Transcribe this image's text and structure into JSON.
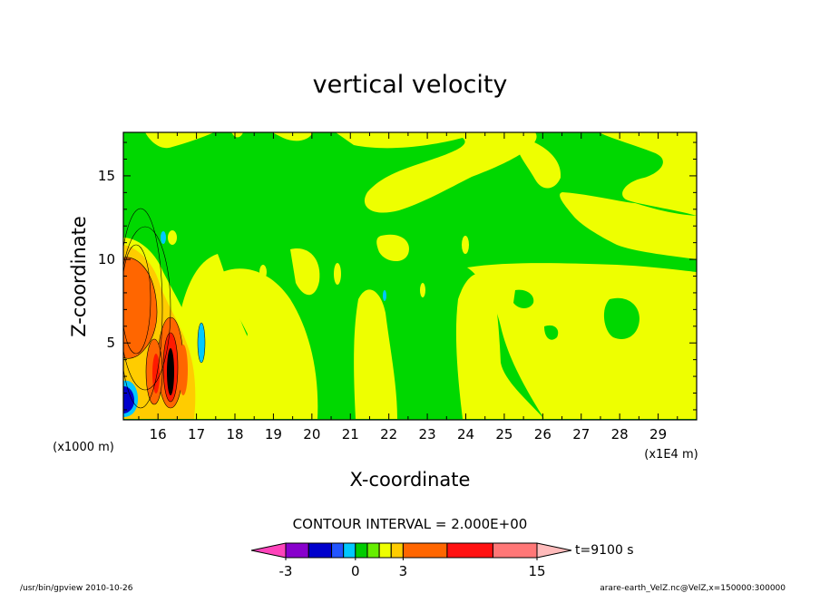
{
  "chart_data": {
    "type": "heatmap",
    "title": "vertical velocity",
    "xlabel": "X-coordinate",
    "ylabel": "Z-coordinate",
    "x_unit_label": "(x1E4 m)",
    "y_unit_label": "(x1000 m)",
    "xlim": [
      15.1,
      30.0
    ],
    "ylim": [
      0.4,
      17.6
    ],
    "x_ticks": [
      16,
      17,
      18,
      19,
      20,
      21,
      22,
      23,
      24,
      25,
      26,
      27,
      28,
      29
    ],
    "y_ticks": [
      5,
      10,
      15
    ],
    "contour_interval_label": "CONTOUR INTERVAL = 2.000E+00",
    "colorbar": {
      "levels": [
        -3,
        -2,
        -1,
        -0.5,
        0,
        0.5,
        1,
        2,
        3,
        7,
        11,
        15
      ],
      "labels": [
        "-3",
        "0",
        "3",
        "15"
      ],
      "colors": [
        "#ff44bb",
        "#8800cc",
        "#0000cc",
        "#2255ff",
        "#00c8ff",
        "#00cc00",
        "#66ee00",
        "#eeff00",
        "#ffcc00",
        "#ff6600",
        "#ff1111",
        "#ff7777",
        "#ffbbbb"
      ]
    },
    "time_label": "t=9100 s",
    "field_colors": {
      "background": "#00d800",
      "positive": "#eeff00",
      "strong": "#ff6600",
      "peak": "#ff1a00",
      "core": "#000000",
      "negative": "#00c8ff",
      "strong_negative": "#0000cc"
    }
  },
  "footer": {
    "left": "/usr/bin/gpview   2010-10-26",
    "right": "arare-earth_VelZ.nc@VelZ,x=150000:300000"
  }
}
